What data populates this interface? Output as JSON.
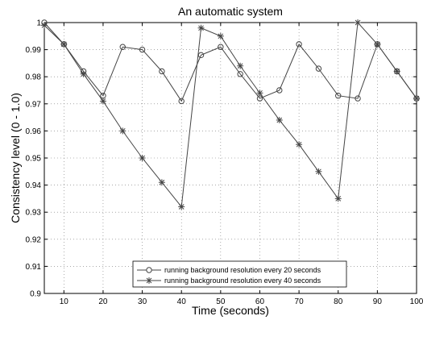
{
  "chart_data": {
    "type": "line",
    "title": "An automatic system",
    "xlabel": "Time (seconds)",
    "ylabel": "Consistency level (0 - 1.0)",
    "xlim": [
      5,
      100
    ],
    "ylim": [
      0.9,
      1.0
    ],
    "xticks": [
      10,
      20,
      30,
      40,
      50,
      60,
      70,
      80,
      90,
      100
    ],
    "yticks": [
      0.9,
      0.91,
      0.92,
      0.93,
      0.94,
      0.95,
      0.96,
      0.97,
      0.98,
      0.99,
      1
    ],
    "ytick_labels": [
      "0.9",
      "0.91",
      "0.92",
      "0.93",
      "0.94",
      "0.95",
      "0.96",
      "0.97",
      "0.98",
      "0.99",
      "1"
    ],
    "grid": true,
    "legend_position": "bottom-center",
    "series": [
      {
        "name": "running background resolution every 20 seconds",
        "marker": "circle",
        "color": "#444444",
        "x": [
          5,
          10,
          15,
          20,
          25,
          30,
          35,
          40,
          45,
          50,
          55,
          60,
          65,
          70,
          75,
          80,
          85,
          90,
          95,
          100
        ],
        "y": [
          1.0,
          0.992,
          0.982,
          0.973,
          0.991,
          0.99,
          0.982,
          0.971,
          0.988,
          0.991,
          0.981,
          0.972,
          0.975,
          0.992,
          0.983,
          0.973,
          0.972,
          0.992,
          0.982,
          0.972
        ]
      },
      {
        "name": "running background resolution every 40 seconds",
        "marker": "star",
        "color": "#444444",
        "x": [
          5,
          10,
          15,
          20,
          25,
          30,
          35,
          40,
          45,
          50,
          55,
          60,
          65,
          70,
          75,
          80,
          85,
          90,
          95,
          100
        ],
        "y": [
          0.999,
          0.992,
          0.981,
          0.971,
          0.96,
          0.95,
          0.941,
          0.932,
          0.998,
          0.995,
          0.984,
          0.974,
          0.964,
          0.955,
          0.945,
          0.935,
          1.0,
          0.992,
          0.982,
          0.972
        ]
      }
    ]
  }
}
